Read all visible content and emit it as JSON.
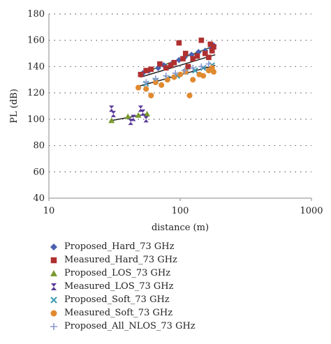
{
  "chart_data": {
    "type": "scatter",
    "xlabel": "distance (m)",
    "ylabel": "PL (dB)",
    "x_scale": "log",
    "xlim": [
      10,
      1000
    ],
    "ylim": [
      40,
      180
    ],
    "x_ticks": [
      "10",
      "100",
      "1000"
    ],
    "y_ticks": [
      "40",
      "60",
      "80",
      "100",
      "120",
      "140",
      "160",
      "180"
    ],
    "grid": "horizontal dotted",
    "legend_position": "bottom",
    "series": [
      {
        "name": "Proposed_Hard_73 GHz",
        "marker": "diamond",
        "color": "#4a60b0",
        "points": [
          [
            52,
            135
          ],
          [
            58,
            137
          ],
          [
            68,
            139
          ],
          [
            75,
            141
          ],
          [
            88,
            143
          ],
          [
            98,
            145
          ],
          [
            108,
            147
          ],
          [
            122,
            149
          ],
          [
            138,
            151
          ],
          [
            155,
            152
          ],
          [
            172,
            154
          ],
          [
            180,
            156
          ]
        ]
      },
      {
        "name": "Measured_Hard_73 GHz",
        "marker": "square",
        "color": "#b03030",
        "points": [
          [
            50,
            134
          ],
          [
            55,
            137
          ],
          [
            60,
            138
          ],
          [
            70,
            142
          ],
          [
            78,
            139
          ],
          [
            85,
            141
          ],
          [
            90,
            143
          ],
          [
            98,
            158
          ],
          [
            105,
            146
          ],
          [
            110,
            150
          ],
          [
            115,
            140
          ],
          [
            125,
            146
          ],
          [
            135,
            148
          ],
          [
            145,
            160
          ],
          [
            155,
            150
          ],
          [
            165,
            147
          ],
          [
            175,
            152
          ],
          [
            180,
            155
          ],
          [
            170,
            157
          ]
        ]
      },
      {
        "name": "Proposed_LOS_73 GHz",
        "marker": "triangle",
        "color": "#7a9a30",
        "points": [
          [
            30,
            99
          ],
          [
            40,
            102
          ],
          [
            48,
            103
          ],
          [
            56,
            104
          ]
        ]
      },
      {
        "name": "Measured_LOS_73 GHz",
        "marker": "hourglass",
        "color": "#5a3a9a",
        "points": [
          [
            30,
            108
          ],
          [
            31,
            104
          ],
          [
            42,
            98
          ],
          [
            44,
            101
          ],
          [
            50,
            108
          ],
          [
            52,
            105
          ],
          [
            55,
            100
          ]
        ]
      },
      {
        "name": "Proposed_Soft_73 GHz",
        "marker": "x",
        "color": "#3a9ab0",
        "points": [
          [
            55,
            127
          ],
          [
            65,
            129
          ],
          [
            80,
            131
          ],
          [
            95,
            133
          ],
          [
            110,
            136
          ],
          [
            130,
            137
          ],
          [
            150,
            139
          ],
          [
            175,
            141
          ]
        ]
      },
      {
        "name": "Measured_Soft_73 GHz",
        "marker": "circle",
        "color": "#e08a30",
        "points": [
          [
            48,
            124
          ],
          [
            55,
            123
          ],
          [
            60,
            118
          ],
          [
            65,
            128
          ],
          [
            72,
            126
          ],
          [
            80,
            130
          ],
          [
            90,
            132
          ],
          [
            100,
            134
          ],
          [
            110,
            136
          ],
          [
            118,
            118
          ],
          [
            125,
            130
          ],
          [
            140,
            134
          ],
          [
            150,
            133
          ],
          [
            165,
            137
          ],
          [
            175,
            139
          ],
          [
            180,
            136
          ]
        ]
      },
      {
        "name": "Proposed_All_NLOS_73 GHz",
        "marker": "plus",
        "color": "#8a9ad0",
        "points": [
          [
            55,
            128
          ],
          [
            65,
            131
          ],
          [
            78,
            133
          ],
          [
            92,
            135
          ],
          [
            108,
            137
          ],
          [
            125,
            139
          ],
          [
            145,
            140
          ],
          [
            165,
            142
          ]
        ]
      }
    ],
    "trend_lines": [
      {
        "color": "#222222",
        "x": [
          30,
          56
        ],
        "y": [
          99,
          104
        ]
      },
      {
        "color": "#222222",
        "x": [
          48,
          185
        ],
        "y": [
          125,
          141
        ]
      },
      {
        "color": "#3a5a20",
        "x": [
          52,
          185
        ],
        "y": [
          135,
          156
        ]
      },
      {
        "color": "#222222",
        "x": [
          50,
          185
        ],
        "y": [
          132,
          149
        ]
      }
    ]
  }
}
